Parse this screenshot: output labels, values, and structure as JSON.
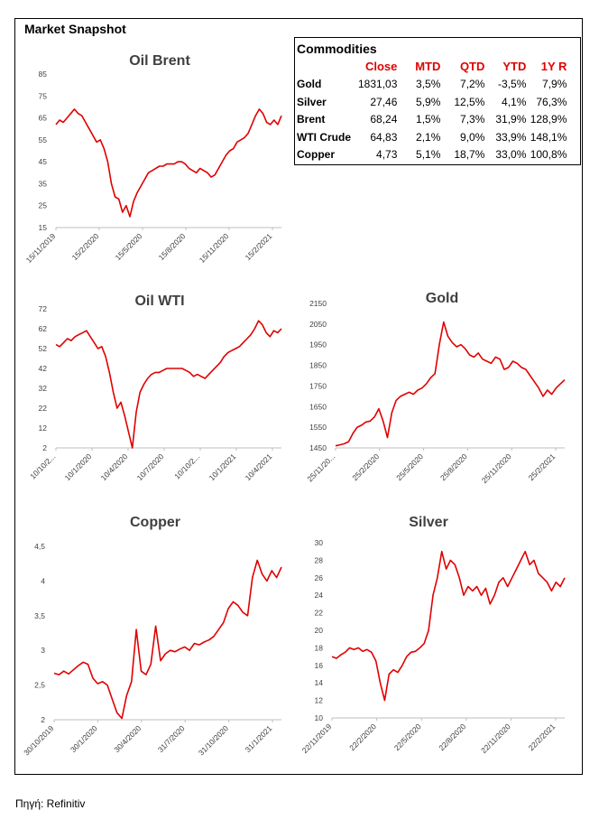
{
  "page": {
    "title": "Market Snapshot",
    "source": "Πηγή: Refinitiv"
  },
  "commodities": {
    "title": "Commodities",
    "headers": [
      "Close",
      "MTD",
      "QTD",
      "YTD",
      "1Y R"
    ],
    "rows": [
      {
        "name": "Gold",
        "values": [
          "1831,03",
          "3,5%",
          "7,2%",
          "-3,5%",
          "7,9%"
        ]
      },
      {
        "name": "Silver",
        "values": [
          "27,46",
          "5,9%",
          "12,5%",
          "4,1%",
          "76,3%"
        ]
      },
      {
        "name": "Brent",
        "values": [
          "68,24",
          "1,5%",
          "7,3%",
          "31,9%",
          "128,9%"
        ]
      },
      {
        "name": "WTI Crude",
        "values": [
          "64,83",
          "2,1%",
          "9,0%",
          "33,9%",
          "148,1%"
        ]
      },
      {
        "name": "Copper",
        "values": [
          "4,73",
          "5,1%",
          "18,7%",
          "33,0%",
          "100,8%"
        ]
      }
    ]
  },
  "colors": {
    "line": "#e00000",
    "axis": "#bfbfbf",
    "text": "#404040",
    "header": "#e00000"
  },
  "chart_data": [
    {
      "id": "brent",
      "type": "line",
      "title": "Oil Brent",
      "ylim": [
        15,
        85
      ],
      "yticks": [
        15,
        25,
        35,
        45,
        55,
        65,
        75,
        85
      ],
      "xticks": [
        "15/11/2019",
        "15/2/2020",
        "15/5/2020",
        "15/8/2020",
        "15/11/2020",
        "15/2/2021"
      ],
      "series": [
        {
          "values": [
            62,
            64,
            63,
            65,
            67,
            69,
            67,
            66,
            63,
            60,
            57,
            54,
            55,
            51,
            45,
            35,
            29,
            28,
            22,
            25,
            20,
            27,
            31,
            34,
            37,
            40,
            41,
            42,
            43,
            43,
            44,
            44,
            44,
            45,
            45,
            44,
            42,
            41,
            40,
            42,
            41,
            40,
            38,
            39,
            42,
            45,
            48,
            50,
            51,
            54,
            55,
            56,
            58,
            62,
            66,
            69,
            67,
            63,
            62,
            64,
            62,
            66
          ]
        }
      ]
    },
    {
      "id": "wti",
      "type": "line",
      "title": "Oil WTI",
      "ylim": [
        2,
        72
      ],
      "yticks": [
        2,
        12,
        22,
        32,
        42,
        52,
        62,
        72
      ],
      "xticks": [
        "10/10/2...",
        "10/1/2020",
        "10/4/2020",
        "10/7/2020",
        "10/10/2...",
        "10/1/2021",
        "10/4/2021"
      ],
      "series": [
        {
          "values": [
            54,
            53,
            55,
            57,
            56,
            58,
            59,
            60,
            61,
            58,
            55,
            52,
            53,
            48,
            40,
            30,
            22,
            25,
            18,
            10,
            2,
            20,
            30,
            34,
            37,
            39,
            40,
            40,
            41,
            42,
            42,
            42,
            42,
            42,
            41,
            40,
            38,
            39,
            38,
            37,
            39,
            41,
            43,
            45,
            48,
            50,
            51,
            52,
            53,
            55,
            57,
            59,
            62,
            66,
            64,
            60,
            58,
            61,
            60,
            62
          ]
        }
      ]
    },
    {
      "id": "gold",
      "type": "line",
      "title": "Gold",
      "ylim": [
        1450,
        2150
      ],
      "yticks": [
        1450,
        1550,
        1650,
        1750,
        1850,
        1950,
        2050,
        2150
      ],
      "xticks": [
        "25/11/20...",
        "25/2/2020",
        "25/5/2020",
        "25/8/2020",
        "25/11/2020",
        "25/2/2021"
      ],
      "series": [
        {
          "values": [
            1460,
            1465,
            1470,
            1480,
            1520,
            1550,
            1560,
            1575,
            1580,
            1600,
            1640,
            1580,
            1500,
            1620,
            1680,
            1700,
            1710,
            1720,
            1710,
            1730,
            1740,
            1760,
            1790,
            1810,
            1950,
            2060,
            1990,
            1960,
            1940,
            1950,
            1930,
            1900,
            1890,
            1910,
            1880,
            1870,
            1860,
            1890,
            1880,
            1830,
            1840,
            1870,
            1860,
            1840,
            1830,
            1800,
            1770,
            1740,
            1700,
            1730,
            1710,
            1740,
            1760,
            1780
          ]
        }
      ]
    },
    {
      "id": "copper",
      "type": "line",
      "title": "Copper",
      "ylim": [
        2,
        4.5
      ],
      "yticks": [
        2,
        2.5,
        3,
        3.5,
        4,
        4.5
      ],
      "ytick_labels": [
        "2",
        "2,5",
        "3",
        "3,5",
        "4",
        "4,5"
      ],
      "xticks": [
        "30/10/2019",
        "30/1/2020",
        "30/4/2020",
        "31/7/2020",
        "31/10/2020",
        "31/1/2021"
      ],
      "series": [
        {
          "values": [
            2.67,
            2.65,
            2.7,
            2.66,
            2.72,
            2.78,
            2.83,
            2.8,
            2.6,
            2.52,
            2.55,
            2.5,
            2.3,
            2.1,
            2.02,
            2.35,
            2.55,
            3.3,
            2.7,
            2.65,
            2.8,
            3.35,
            2.85,
            2.95,
            3.0,
            2.98,
            3.02,
            3.05,
            3.0,
            3.1,
            3.08,
            3.12,
            3.15,
            3.2,
            3.3,
            3.4,
            3.6,
            3.7,
            3.65,
            3.55,
            3.5,
            4.05,
            4.3,
            4.1,
            4.0,
            4.15,
            4.05,
            4.2
          ]
        }
      ]
    },
    {
      "id": "silver",
      "type": "line",
      "title": "Silver",
      "ylim": [
        10,
        30
      ],
      "yticks": [
        10,
        12,
        14,
        16,
        18,
        20,
        22,
        24,
        26,
        28,
        30
      ],
      "xticks": [
        "22/11/2019",
        "22/2/2020",
        "22/5/2020",
        "22/8/2020",
        "22/11/2020",
        "22/2/2021"
      ],
      "series": [
        {
          "values": [
            17,
            16.8,
            17.2,
            17.5,
            18,
            17.8,
            18,
            17.6,
            17.8,
            17.5,
            16.5,
            14,
            12,
            15,
            15.5,
            15.2,
            16,
            17,
            17.5,
            17.6,
            18,
            18.5,
            20,
            24,
            26,
            29,
            27,
            28,
            27.5,
            26,
            24,
            25,
            24.5,
            25,
            24,
            24.8,
            23,
            24,
            25.5,
            26,
            25,
            26,
            27,
            28,
            29,
            27.5,
            28,
            26.5,
            26,
            25.5,
            24.5,
            25.5,
            25,
            26
          ]
        }
      ]
    }
  ]
}
